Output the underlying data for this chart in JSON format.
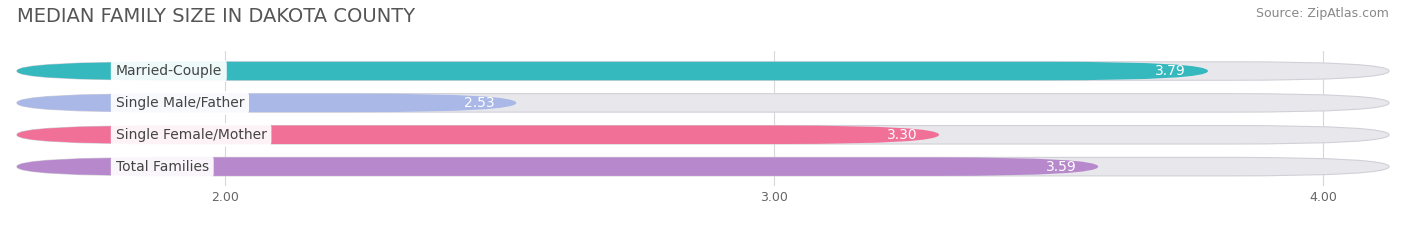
{
  "title": "MEDIAN FAMILY SIZE IN DAKOTA COUNTY",
  "source": "Source: ZipAtlas.com",
  "categories": [
    "Married-Couple",
    "Single Male/Father",
    "Single Female/Mother",
    "Total Families"
  ],
  "values": [
    3.79,
    2.53,
    3.3,
    3.59
  ],
  "bar_colors": [
    "#35b8be",
    "#aab8e8",
    "#f07098",
    "#b888cc"
  ],
  "xlim_left": 1.62,
  "xlim_right": 4.12,
  "data_min": 1.62,
  "data_max": 4.12,
  "xticks": [
    2.0,
    3.0,
    4.0
  ],
  "xtick_labels": [
    "2.00",
    "3.00",
    "4.00"
  ],
  "background_color": "#ffffff",
  "bar_bg_color": "#e8e8ec",
  "title_fontsize": 14,
  "label_fontsize": 10,
  "value_fontsize": 10,
  "source_fontsize": 9
}
